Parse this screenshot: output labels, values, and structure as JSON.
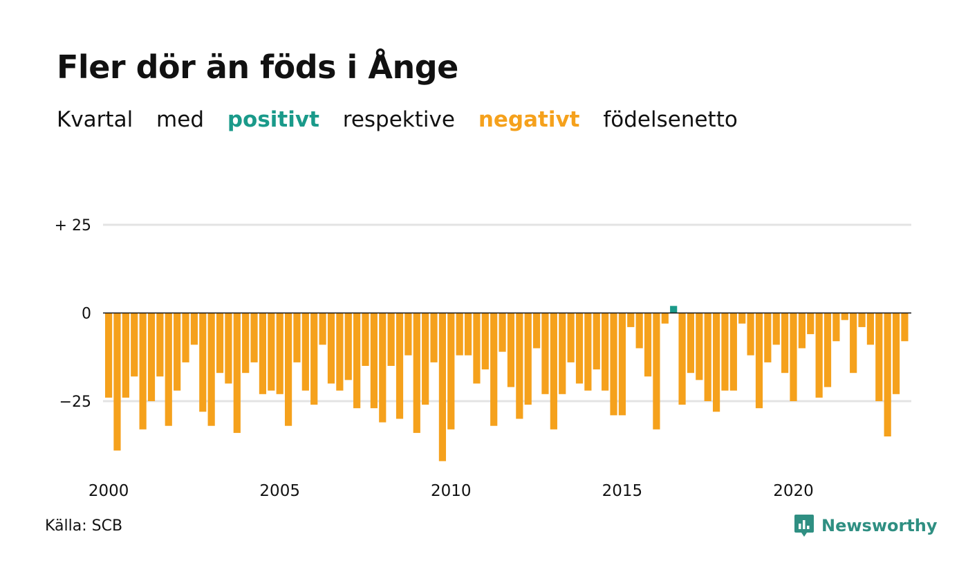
{
  "title": "Fler dör än föds i Ånge",
  "subtitle": {
    "parts": [
      "Kvartal",
      "med",
      "positivt",
      "respektive",
      "negativt",
      "födelsenetto"
    ]
  },
  "source": "Källa: SCB",
  "brand": {
    "name": "Newsworthy",
    "icon": "newsworthy-logo-icon"
  },
  "colors": {
    "positive": "#1a9a8a",
    "negative": "#f5a11c",
    "grid": "#e3e3e3",
    "zero": "#111111"
  },
  "chart_data": {
    "type": "bar",
    "x_start": "2000 Q1",
    "frequency": "quarterly",
    "values": [
      -24,
      -39,
      -24,
      -18,
      -33,
      -25,
      -18,
      -32,
      -22,
      -14,
      -9,
      -28,
      -32,
      -17,
      -20,
      -34,
      -17,
      -14,
      -23,
      -22,
      -23,
      -32,
      -14,
      -22,
      -26,
      -9,
      -20,
      -22,
      -19,
      -27,
      -15,
      -27,
      -31,
      -15,
      -30,
      -12,
      -34,
      -26,
      -14,
      -42,
      -33,
      -12,
      -12,
      -20,
      -16,
      -32,
      -11,
      -21,
      -30,
      -26,
      -10,
      -23,
      -33,
      -23,
      -14,
      -20,
      -22,
      -16,
      -22,
      -29,
      -29,
      -4,
      -10,
      -18,
      -33,
      -3,
      2,
      -26,
      -17,
      -19,
      -25,
      -28,
      -22,
      -22,
      -3,
      -12,
      -27,
      -14,
      -9,
      -17,
      -25,
      -10,
      -6,
      -24,
      -21,
      -8,
      -2,
      -17,
      -4,
      -9,
      -25,
      -35,
      -23,
      -8
    ],
    "x_ticks": [
      "2000",
      "2005",
      "2010",
      "2015",
      "2020"
    ],
    "y_ticks": [
      "+ 25",
      "0",
      "−25"
    ],
    "ylim": [
      -45,
      25
    ],
    "grid": true
  }
}
